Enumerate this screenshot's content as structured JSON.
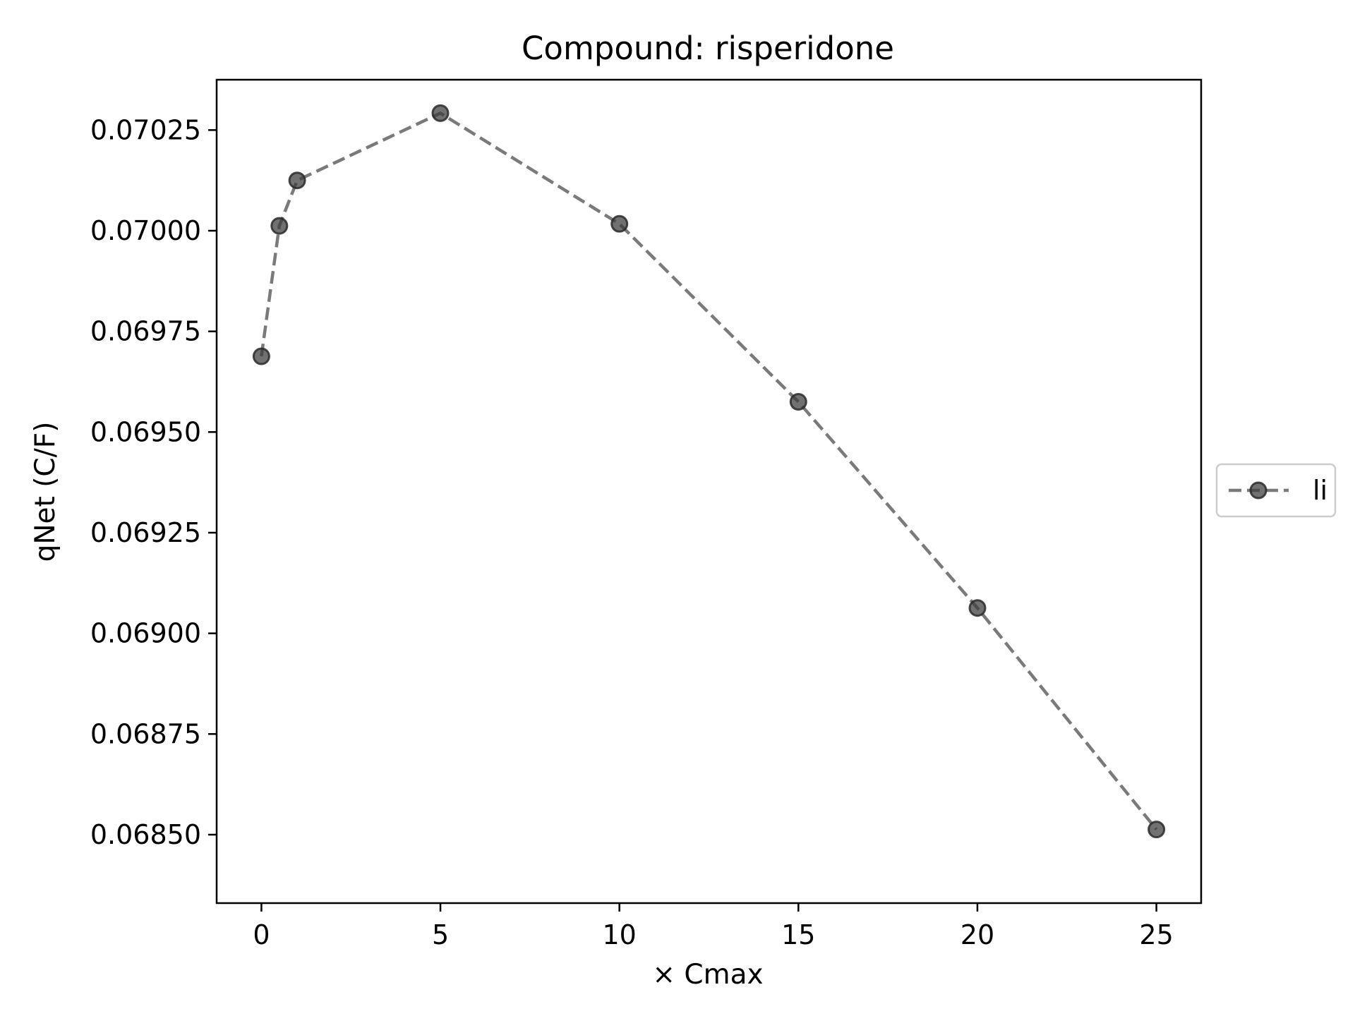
{
  "chart_data": {
    "type": "line",
    "title": "Compound: risperidone",
    "xlabel": "× Cmax",
    "ylabel": "qNet (C/F)",
    "xlim": [
      -1.25,
      26.25
    ],
    "ylim": [
      0.06833,
      0.070375
    ],
    "x_ticks": [
      0,
      5,
      10,
      15,
      20,
      25
    ],
    "x_tick_labels": [
      "0",
      "5",
      "10",
      "15",
      "20",
      "25"
    ],
    "y_ticks": [
      0.0685,
      0.06875,
      0.069,
      0.06925,
      0.0695,
      0.06975,
      0.07,
      0.07025
    ],
    "y_tick_labels": [
      "0.06850",
      "0.06875",
      "0.06900",
      "0.06925",
      "0.06950",
      "0.06975",
      "0.07000",
      "0.07025"
    ],
    "grid": false,
    "legend_position": "center-right-outside",
    "series": [
      {
        "name": "li",
        "color": "#555555",
        "line_style": "dashed",
        "marker": "circle",
        "x": [
          0,
          0.5,
          1,
          5,
          10,
          15,
          20,
          25
        ],
        "y": [
          0.069688,
          0.070012,
          0.070125,
          0.070292,
          0.070017,
          0.069575,
          0.069063,
          0.068513
        ]
      }
    ]
  }
}
